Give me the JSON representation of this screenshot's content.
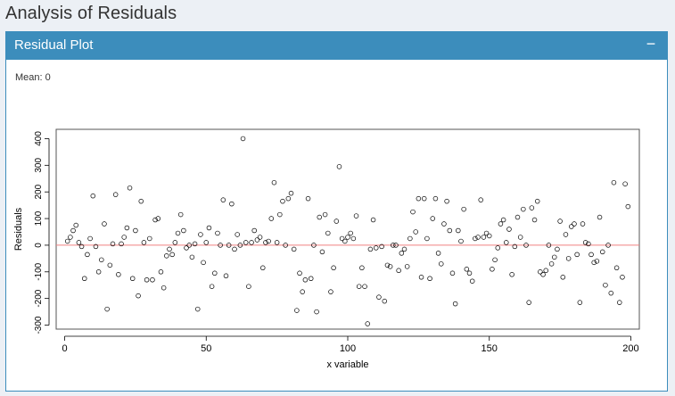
{
  "page": {
    "title": "Analysis of Residuals"
  },
  "box": {
    "title": "Residual Plot",
    "collapse_label": "−",
    "mean_text": "Mean: 0"
  },
  "colors": {
    "header_bg": "#3c8dbc",
    "reference_line": "#f08080",
    "background": "#ecf0f5"
  },
  "chart_data": {
    "type": "scatter",
    "xlabel": "x variable",
    "ylabel": "Residuals",
    "xlim": [
      -3,
      203
    ],
    "ylim": [
      -315,
      435
    ],
    "x_ticks": [
      0,
      50,
      100,
      150,
      200
    ],
    "y_ticks": [
      -300,
      -200,
      -100,
      0,
      100,
      200,
      300,
      400
    ],
    "reference_line_y": 0,
    "grid": false,
    "y": [
      15,
      30,
      55,
      75,
      10,
      -5,
      -125,
      -35,
      25,
      185,
      -5,
      -100,
      -55,
      80,
      -240,
      -75,
      5,
      190,
      -110,
      5,
      30,
      65,
      215,
      -125,
      55,
      -190,
      165,
      10,
      -130,
      25,
      -130,
      95,
      100,
      -100,
      -160,
      -40,
      -15,
      -35,
      10,
      45,
      115,
      55,
      -10,
      0,
      -45,
      5,
      -240,
      40,
      -65,
      10,
      65,
      -155,
      -105,
      45,
      0,
      170,
      -115,
      0,
      155,
      -15,
      40,
      0,
      400,
      10,
      -155,
      10,
      55,
      20,
      30,
      -85,
      10,
      15,
      100,
      235,
      10,
      115,
      165,
      0,
      175,
      195,
      -15,
      -245,
      -105,
      -175,
      -130,
      175,
      -125,
      0,
      -250,
      105,
      -25,
      115,
      45,
      -175,
      -85,
      90,
      295,
      25,
      15,
      30,
      45,
      25,
      110,
      -155,
      -85,
      -155,
      -295,
      -15,
      95,
      -10,
      -195,
      -5,
      -210,
      -75,
      -80,
      0,
      0,
      -95,
      -30,
      -15,
      -80,
      25,
      125,
      50,
      175,
      -120,
      175,
      25,
      -125,
      100,
      175,
      -30,
      -70,
      80,
      165,
      55,
      -105,
      -220,
      55,
      15,
      135,
      -90,
      -105,
      -135,
      25,
      30,
      170,
      30,
      45,
      35,
      -90,
      -55,
      -10,
      80,
      95,
      10,
      60,
      -110,
      -5,
      105,
      30,
      135,
      0,
      -215,
      140,
      95,
      165,
      -100,
      -110,
      -95,
      0,
      -70,
      -45,
      -15,
      90,
      -120,
      40,
      -50,
      70,
      80,
      -35,
      -215,
      80,
      10,
      5,
      -35,
      -65,
      -60,
      105,
      -25,
      -150,
      0,
      -180,
      235,
      -85,
      -215,
      -120,
      230,
      145
    ]
  }
}
